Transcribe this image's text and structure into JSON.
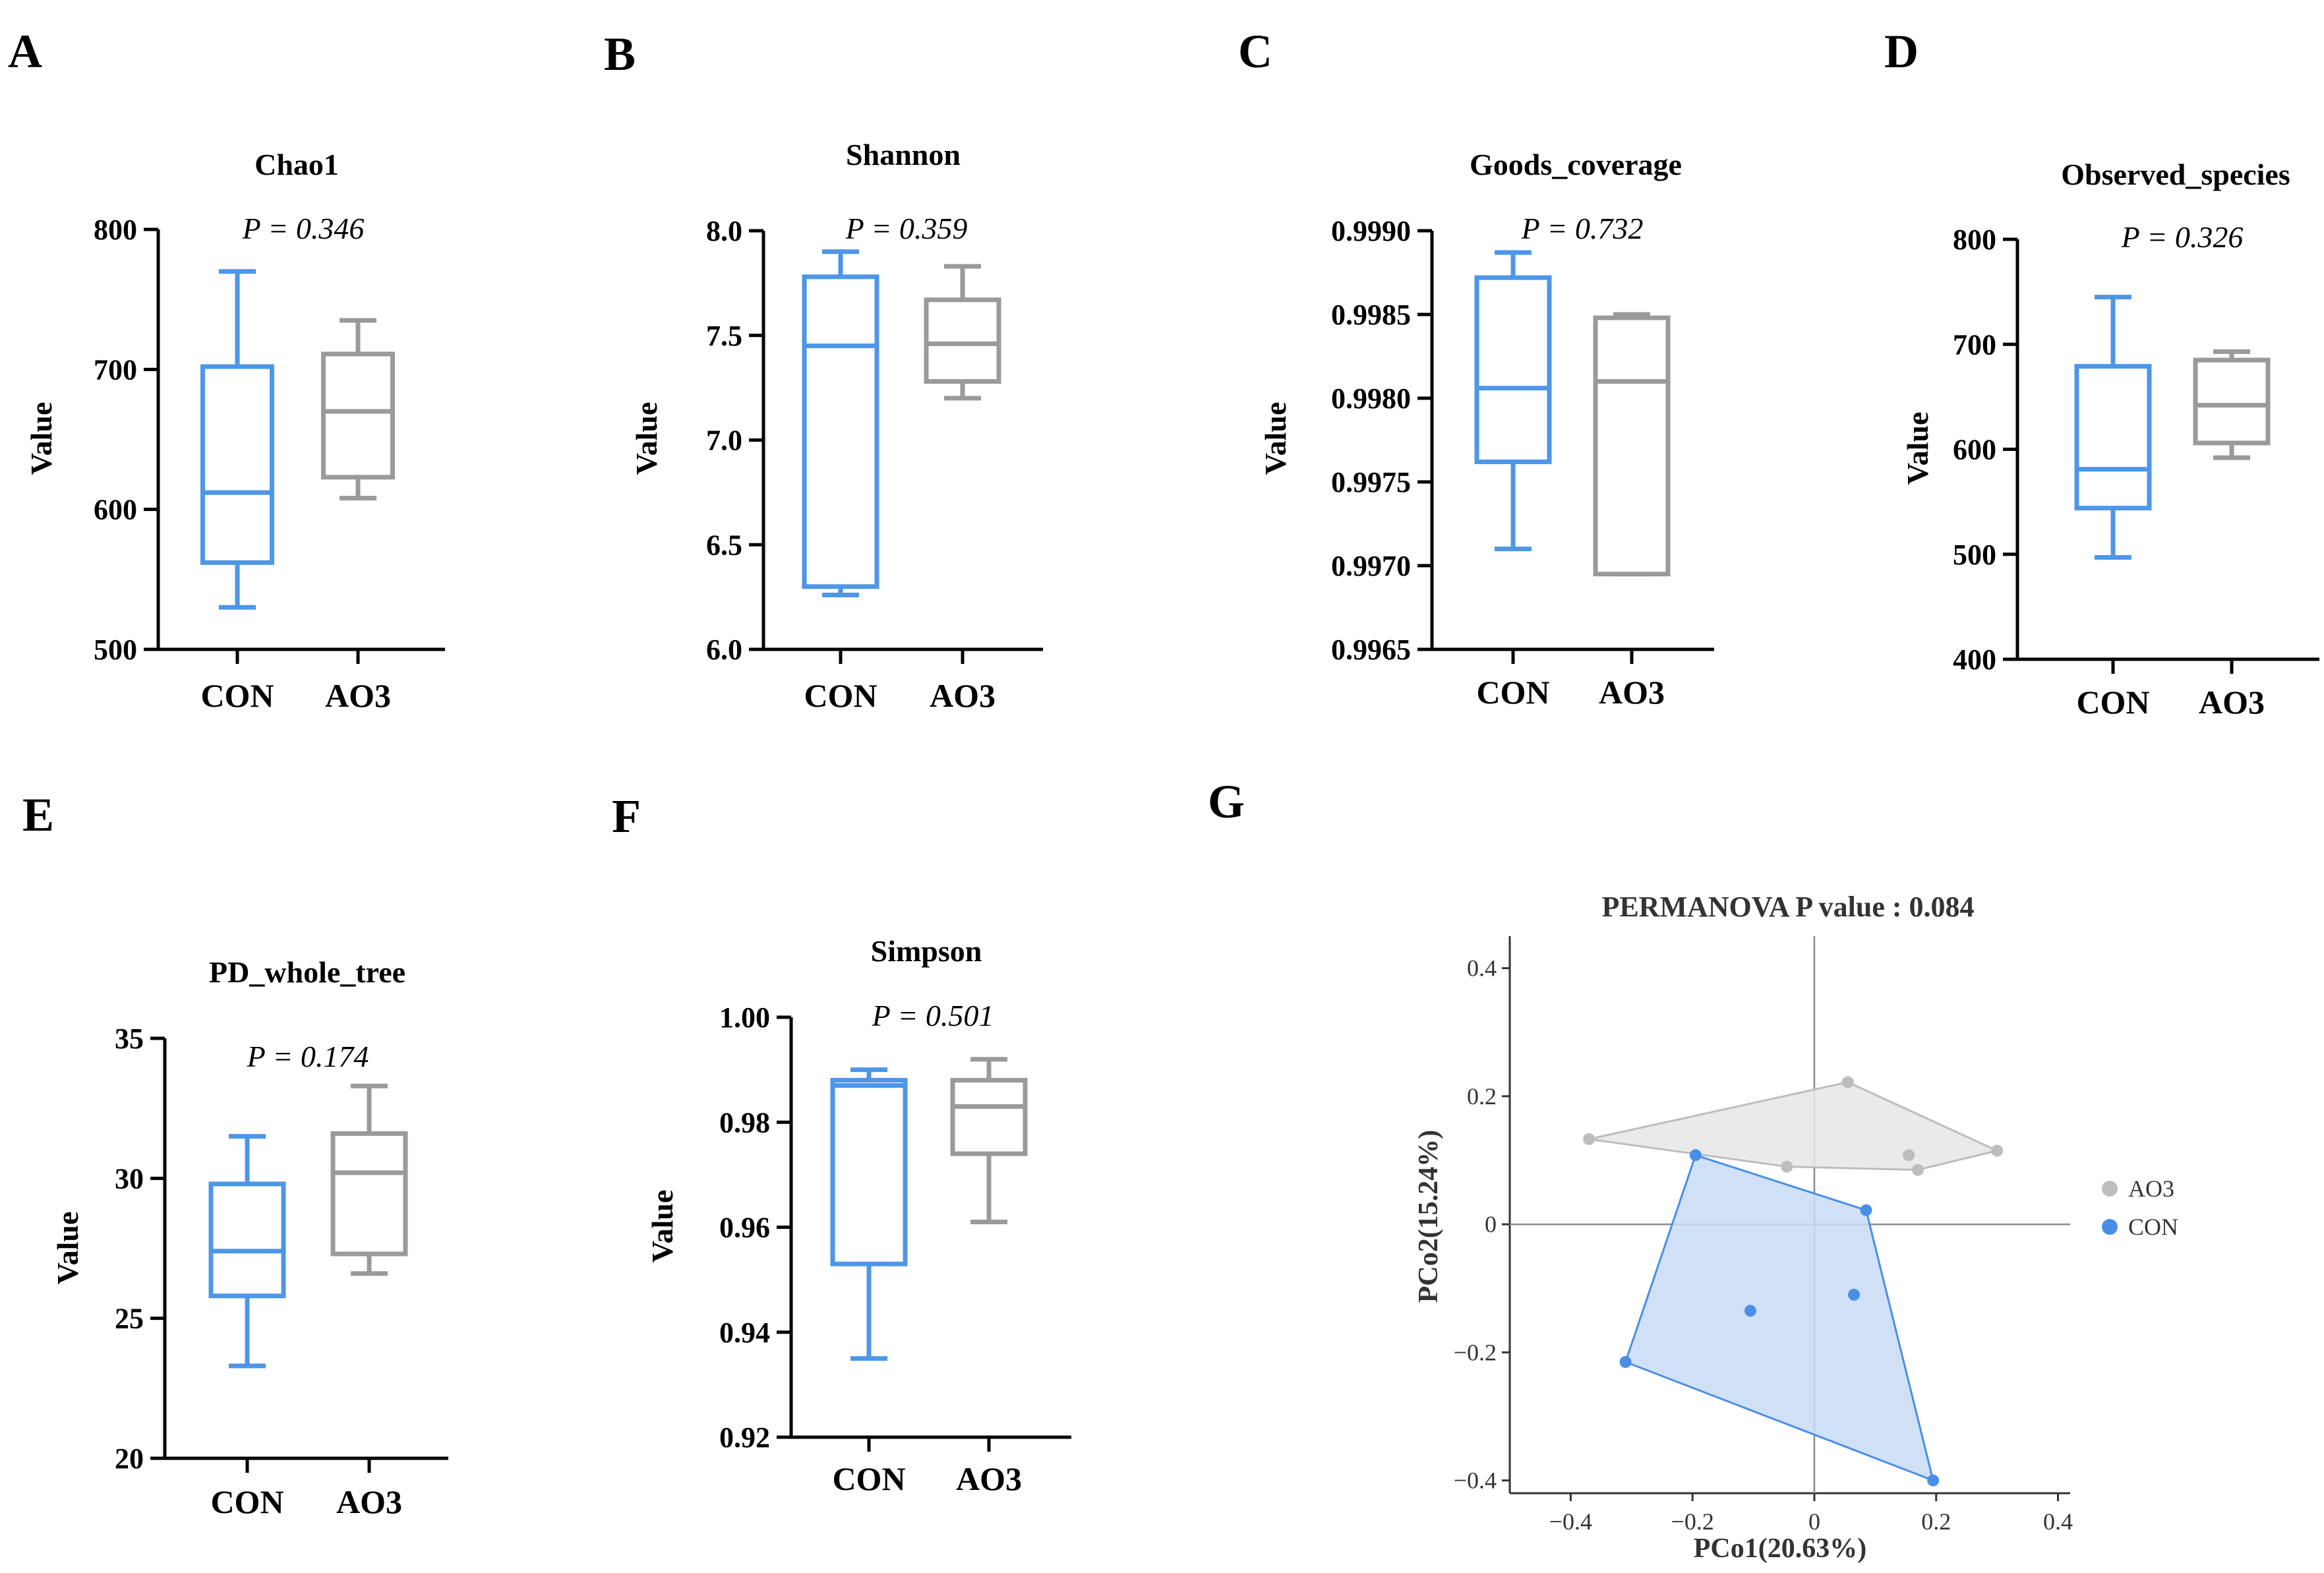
{
  "colors": {
    "con": "#4d96e8",
    "ao3": "#9a9a9a",
    "axis": "#000000",
    "con_fill": "#c8dcf6",
    "ao3_fill": "#e6e6e6",
    "pcoa_con": "#4a8fe6",
    "pcoa_ao3": "#bdbdbd"
  },
  "chart_data": [
    {
      "panel": "A",
      "type": "box",
      "title": "Chao1",
      "ylabel": "Value",
      "p_label": "P = 0.346",
      "ylim": [
        500,
        800
      ],
      "yticks": [
        "500",
        "600",
        "700",
        "800"
      ],
      "yticks_v": [
        500,
        600,
        700,
        800
      ],
      "categories": [
        "CON",
        "AO3"
      ],
      "boxes": [
        {
          "name": "CON",
          "min": 530,
          "q1": 562,
          "median": 612,
          "q3": 702,
          "max": 770
        },
        {
          "name": "AO3",
          "min": 608,
          "q1": 623,
          "median": 670,
          "q3": 711,
          "max": 735
        }
      ]
    },
    {
      "panel": "B",
      "type": "box",
      "title": "Shannon",
      "ylabel": "Value",
      "p_label": "P = 0.359",
      "ylim": [
        6.0,
        8.0
      ],
      "yticks": [
        "6.0",
        "6.5",
        "7.0",
        "7.5",
        "8.0"
      ],
      "yticks_v": [
        6.0,
        6.5,
        7.0,
        7.5,
        8.0
      ],
      "categories": [
        "CON",
        "AO3"
      ],
      "boxes": [
        {
          "name": "CON",
          "min": 6.26,
          "q1": 6.3,
          "median": 7.45,
          "q3": 7.78,
          "max": 7.9
        },
        {
          "name": "AO3",
          "min": 7.2,
          "q1": 7.28,
          "median": 7.46,
          "q3": 7.67,
          "max": 7.83
        }
      ]
    },
    {
      "panel": "C",
      "type": "box",
      "title": "Goods_coverage",
      "ylabel": "Value",
      "p_label": "P = 0.732",
      "ylim": [
        0.9965,
        0.999
      ],
      "yticks": [
        "0.9965",
        "0.9970",
        "0.9975",
        "0.9980",
        "0.9985",
        "0.9990"
      ],
      "yticks_v": [
        0.9965,
        0.997,
        0.9975,
        0.998,
        0.9985,
        0.999
      ],
      "categories": [
        "CON",
        "AO3"
      ],
      "boxes": [
        {
          "name": "CON",
          "min": 0.9971,
          "q1": 0.99762,
          "median": 0.99806,
          "q3": 0.99872,
          "max": 0.99887
        },
        {
          "name": "AO3",
          "min": 0.99695,
          "q1": 0.99695,
          "median": 0.9981,
          "q3": 0.99848,
          "max": 0.9985
        }
      ]
    },
    {
      "panel": "D",
      "type": "box",
      "title": "Observed_species",
      "ylabel": "Value",
      "p_label": "P = 0.326",
      "ylim": [
        400,
        800
      ],
      "yticks": [
        "400",
        "500",
        "600",
        "700",
        "800"
      ],
      "yticks_v": [
        400,
        500,
        600,
        700,
        800
      ],
      "categories": [
        "CON",
        "AO3"
      ],
      "boxes": [
        {
          "name": "CON",
          "min": 497,
          "q1": 544,
          "median": 581,
          "q3": 679,
          "max": 745
        },
        {
          "name": "AO3",
          "min": 592,
          "q1": 606,
          "median": 642,
          "q3": 685,
          "max": 693
        }
      ]
    },
    {
      "panel": "E",
      "type": "box",
      "title": "PD_whole_tree",
      "ylabel": "Value",
      "p_label": "P = 0.174",
      "ylim": [
        20,
        35
      ],
      "yticks": [
        "20",
        "25",
        "30",
        "35"
      ],
      "yticks_v": [
        20,
        25,
        30,
        35
      ],
      "categories": [
        "CON",
        "AO3"
      ],
      "boxes": [
        {
          "name": "CON",
          "min": 23.3,
          "q1": 25.8,
          "median": 27.4,
          "q3": 29.8,
          "max": 31.5
        },
        {
          "name": "AO3",
          "min": 26.6,
          "q1": 27.3,
          "median": 30.2,
          "q3": 31.6,
          "max": 33.3
        }
      ]
    },
    {
      "panel": "F",
      "type": "box",
      "title": "Simpson",
      "ylabel": "Value",
      "p_label": "P = 0.501",
      "ylim": [
        0.92,
        1.0
      ],
      "yticks": [
        "0.92",
        "0.94",
        "0.96",
        "0.98",
        "1.00"
      ],
      "yticks_v": [
        0.92,
        0.94,
        0.96,
        0.98,
        1.0
      ],
      "categories": [
        "CON",
        "AO3"
      ],
      "boxes": [
        {
          "name": "CON",
          "min": 0.935,
          "q1": 0.953,
          "median": 0.987,
          "q3": 0.988,
          "max": 0.99
        },
        {
          "name": "AO3",
          "min": 0.961,
          "q1": 0.974,
          "median": 0.983,
          "q3": 0.988,
          "max": 0.992
        }
      ]
    },
    {
      "panel": "G",
      "type": "scatter",
      "title": "PERMANOVA P value : 0.084",
      "xlabel": "PCo1(20.63%)",
      "ylabel": "PCo2(15.24%)",
      "xlim": [
        -0.5,
        0.42
      ],
      "ylim": [
        -0.42,
        0.45
      ],
      "xticks": [
        "−0.4",
        "−0.2",
        "0",
        "0.2",
        "0.4"
      ],
      "xticks_v": [
        -0.4,
        -0.2,
        0,
        0.2,
        0.4
      ],
      "yticks": [
        "−0.4",
        "−0.2",
        "0",
        "0.2",
        "0.4"
      ],
      "yticks_v": [
        -0.4,
        -0.2,
        0,
        0.2,
        0.4
      ],
      "series": [
        {
          "name": "AO3",
          "points": [
            [
              -0.37,
              0.133
            ],
            [
              0.055,
              0.222
            ],
            [
              -0.045,
              0.09
            ],
            [
              0.155,
              0.108
            ],
            [
              0.17,
              0.085
            ],
            [
              0.3,
              0.115
            ]
          ],
          "hull": [
            [
              -0.37,
              0.133
            ],
            [
              0.055,
              0.222
            ],
            [
              0.3,
              0.115
            ],
            [
              0.17,
              0.085
            ],
            [
              -0.045,
              0.09
            ]
          ]
        },
        {
          "name": "CON",
          "points": [
            [
              -0.195,
              0.108
            ],
            [
              0.085,
              0.022
            ],
            [
              -0.105,
              -0.135
            ],
            [
              0.065,
              -0.11
            ],
            [
              -0.31,
              -0.215
            ],
            [
              0.195,
              -0.4
            ]
          ],
          "hull": [
            [
              -0.195,
              0.108
            ],
            [
              0.085,
              0.022
            ],
            [
              0.195,
              -0.4
            ],
            [
              -0.31,
              -0.215
            ]
          ]
        }
      ],
      "legend": [
        "AO3",
        "CON"
      ]
    }
  ]
}
